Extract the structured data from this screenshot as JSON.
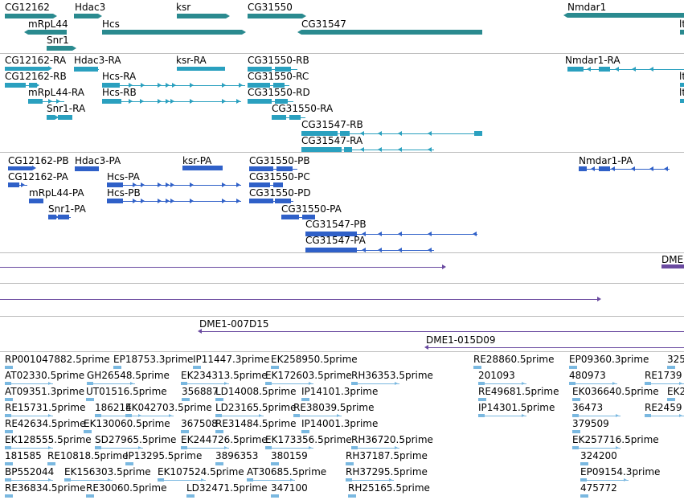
{
  "colors": {
    "gene": "#2a8a8f",
    "transcript": "#2aa0bf",
    "protein": "#2f60c8",
    "clone": "#6a4aa0",
    "est": "#7ab8e0",
    "separator": "#bcbcbc"
  },
  "genes": [
    "CG12162",
    "Hdac3",
    "ksr",
    "CG31550",
    "Nmdar1",
    "mRpL44",
    "Hcs",
    "CG31547",
    "lt",
    "Snr1"
  ],
  "transcripts": [
    "CG12162-RA",
    "Hdac3-RA",
    "ksr-RA",
    "CG31550-RB",
    "Nmdar1-RA",
    "CG12162-RB",
    "Hcs-RA",
    "CG31550-RC",
    "lt",
    "mRpL44-RA",
    "Hcs-RB",
    "CG31550-RD",
    "lt",
    "Snr1-RA",
    "CG31550-RA",
    "CG31547-RB",
    "CG31547-RA"
  ],
  "proteins": [
    "CG12162-PB",
    "Hdac3-PA",
    "ksr-PA",
    "CG31550-PB",
    "Nmdar1-PA",
    "CG12162-PA",
    "Hcs-PA",
    "CG31550-PC",
    "mRpL44-PA",
    "Hcs-PB",
    "CG31550-PD",
    "Snr1-PA",
    "CG31550-PA",
    "CG31547-PB",
    "CG31547-PA"
  ],
  "clones": [
    "DME",
    "DME1-007D15",
    "DME1-015D09"
  ],
  "ests": [
    "RP001047882.5prime",
    "EP18753.3prime",
    "IP11447.3prime",
    "EK258950.5prime",
    "RE28860.5prime",
    "EP09360.3prime",
    "325",
    "AT02330.5prime",
    "GH26548.5prime",
    "EK234313.5prime",
    "EK172603.5prime",
    "RH36353.5prime",
    "201093",
    "480973",
    "RE1739",
    "AT09351.3prime",
    "UT01516.5prime",
    "356887",
    "LD14008.5prime",
    "IP14101.3prime",
    "RE49681.5prime",
    "EK036640.5prime",
    "EK2",
    "RE15731.5prime",
    "186214",
    "EK042703.5prime",
    "LD23165.5prime",
    "RE38039.5prime",
    "IP14301.5prime",
    "36473",
    "RE2459",
    "RE42634.5prime",
    "EK130060.5prime",
    "367508",
    "RE31484.5prime",
    "IP14001.3prime",
    "379509",
    "EK128555.5prime",
    "SD27965.5prime",
    "EK244726.5prime",
    "EK173356.5prime",
    "RH36720.5prime",
    "EK257716.5prime",
    "181585",
    "RE10818.5prime",
    "IP13295.5prime",
    "3896353",
    "380159",
    "RH37187.5prime",
    "324200",
    "BP552044",
    "EK156303.5prime",
    "EK107524.5prime",
    "AT30685.5prime",
    "RH37295.5prime",
    "EP09154.3prime",
    "RE36834.5prime",
    "RE30060.5prime",
    "LD32471.5prime",
    "347100",
    "RH25165.5prime",
    "475772"
  ]
}
